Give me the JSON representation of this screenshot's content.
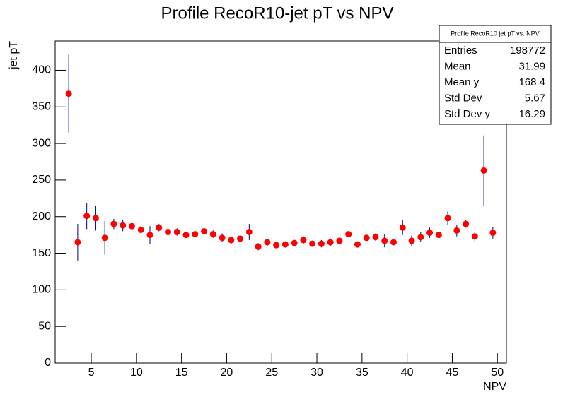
{
  "chart_data": {
    "type": "profile",
    "title": "Profile RecoR10-jet pT vs NPV",
    "x_label": "NPV",
    "y_label": "jet pT",
    "x": [
      2.5,
      3.5,
      4.5,
      5.5,
      6.5,
      7.5,
      8.5,
      9.5,
      10.5,
      11.5,
      12.5,
      13.5,
      14.5,
      15.5,
      16.5,
      17.5,
      18.5,
      19.5,
      20.5,
      21.5,
      22.5,
      23.5,
      24.5,
      25.5,
      26.5,
      27.5,
      28.5,
      29.5,
      30.5,
      31.5,
      32.5,
      33.5,
      34.5,
      35.5,
      36.5,
      37.5,
      38.5,
      39.5,
      40.5,
      41.5,
      42.5,
      43.5,
      44.5,
      45.5,
      46.5,
      47.5,
      48.5,
      49.5
    ],
    "values": [
      368,
      165,
      201,
      198,
      171,
      190,
      188,
      187,
      182,
      175,
      185,
      179,
      179,
      175,
      176,
      180,
      176,
      171,
      168,
      170,
      179,
      159,
      165,
      161,
      162,
      164,
      168,
      163,
      163,
      165,
      167,
      176,
      162,
      171,
      172,
      167,
      165,
      185,
      167,
      172,
      178,
      175,
      198,
      181,
      190,
      173,
      263,
      178
    ],
    "errors": [
      53,
      25,
      18,
      17,
      23,
      7,
      8,
      6,
      5,
      12,
      5,
      6,
      5,
      4,
      4,
      4,
      5,
      6,
      5,
      5,
      11,
      5,
      5,
      4,
      4,
      4,
      5,
      4,
      5,
      5,
      4,
      4,
      4,
      4,
      5,
      9,
      4,
      10,
      7,
      7,
      7,
      4,
      9,
      8,
      5,
      7,
      48,
      8
    ],
    "marker_color": "#ff0000",
    "error_color": "#00007f",
    "xlim": [
      1,
      51
    ],
    "ylim": [
      0,
      440
    ],
    "xticks": [
      5,
      10,
      15,
      20,
      25,
      30,
      35,
      40,
      45,
      50
    ],
    "yticks": [
      0,
      50,
      100,
      150,
      200,
      250,
      300,
      350,
      400
    ],
    "stats": {
      "title": "Profile RecoR10 jet pT vs. NPV",
      "rows": [
        [
          "Entries",
          198772
        ],
        [
          "Mean",
          31.99
        ],
        [
          "Mean y",
          168.4
        ],
        [
          "Std Dev",
          5.67
        ],
        [
          "Std Dev y",
          16.29
        ]
      ]
    }
  }
}
